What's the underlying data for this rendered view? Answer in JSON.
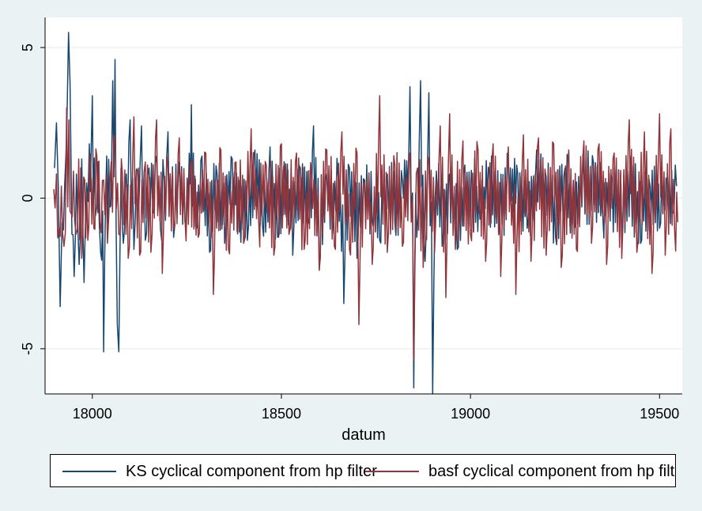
{
  "chart_data": {
    "type": "line",
    "xlabel": "datum",
    "ylabel": "",
    "xlim": [
      17875,
      19560
    ],
    "ylim": [
      -6.5,
      6
    ],
    "xticks": [
      18000,
      18500,
      19000,
      19500
    ],
    "yticks": [
      -5,
      0,
      5
    ],
    "grid": true,
    "legend_position": "bottom",
    "series": [
      {
        "name": "KS cyclical component from hp filter",
        "color": "#1a476f",
        "anchors": [
          [
            17900,
            1.0
          ],
          [
            17905,
            2.5
          ],
          [
            17910,
            0.4
          ],
          [
            17915,
            -3.6
          ],
          [
            17920,
            -0.8
          ],
          [
            17927,
            0.5
          ],
          [
            17932,
            2.0
          ],
          [
            17937,
            5.5
          ],
          [
            17941,
            3.8
          ],
          [
            17946,
            -1.2
          ],
          [
            17952,
            -2.6
          ],
          [
            17958,
            0.8
          ],
          [
            17965,
            -2.2
          ],
          [
            17972,
            1.3
          ],
          [
            17978,
            -2.8
          ],
          [
            17985,
            0.5
          ],
          [
            17992,
            1.8
          ],
          [
            18000,
            3.4
          ],
          [
            18008,
            -0.6
          ],
          [
            18015,
            1.2
          ],
          [
            18022,
            -1.8
          ],
          [
            18030,
            -5.1
          ],
          [
            18038,
            1.4
          ],
          [
            18046,
            -0.3
          ],
          [
            18054,
            3.9
          ],
          [
            18060,
            4.6
          ],
          [
            18066,
            -4.2
          ],
          [
            18070,
            -5.1
          ],
          [
            18076,
            1.0
          ],
          [
            18082,
            -1.5
          ],
          [
            18090,
            0.8
          ],
          [
            18100,
            2.6
          ],
          [
            18110,
            -1.7
          ],
          [
            18120,
            0.9
          ],
          [
            18130,
            2.4
          ],
          [
            18140,
            -1.4
          ],
          [
            18150,
            1.0
          ],
          [
            18160,
            -0.5
          ],
          [
            18170,
            1.4
          ],
          [
            18180,
            -1.0
          ],
          [
            18190,
            0.6
          ],
          [
            18200,
            2.2
          ],
          [
            18215,
            -1.3
          ],
          [
            18230,
            1.2
          ],
          [
            18245,
            -0.8
          ],
          [
            18262,
            3.1
          ],
          [
            18275,
            -1.0
          ],
          [
            18290,
            1.4
          ],
          [
            18310,
            -1.8
          ],
          [
            18330,
            0.8
          ],
          [
            18350,
            -1.5
          ],
          [
            18370,
            1.3
          ],
          [
            18390,
            -0.5
          ],
          [
            18410,
            -1.4
          ],
          [
            18430,
            1.6
          ],
          [
            18450,
            -0.9
          ],
          [
            18470,
            1.7
          ],
          [
            18490,
            -1.3
          ],
          [
            18510,
            0.6
          ],
          [
            18530,
            -1.9
          ],
          [
            18550,
            1.0
          ],
          [
            18570,
            -0.7
          ],
          [
            18585,
            2.4
          ],
          [
            18600,
            -2.3
          ],
          [
            18620,
            0.8
          ],
          [
            18635,
            -1.2
          ],
          [
            18650,
            0.7
          ],
          [
            18665,
            -3.5
          ],
          [
            18680,
            1.0
          ],
          [
            18700,
            -2.0
          ],
          [
            18720,
            0.6
          ],
          [
            18740,
            -0.7
          ],
          [
            18760,
            -1.4
          ],
          [
            18780,
            0.8
          ],
          [
            18800,
            -0.8
          ],
          [
            18820,
            0.6
          ],
          [
            18840,
            3.7
          ],
          [
            18850,
            -6.3
          ],
          [
            18858,
            -1.3
          ],
          [
            18868,
            3.9
          ],
          [
            18880,
            -2.1
          ],
          [
            18890,
            3.5
          ],
          [
            18900,
            -6.5
          ],
          [
            18910,
            0.9
          ],
          [
            18925,
            -1.6
          ],
          [
            18945,
            0.8
          ],
          [
            18965,
            -1.7
          ],
          [
            18985,
            1.1
          ],
          [
            19005,
            0.5
          ],
          [
            19025,
            -0.7
          ],
          [
            19050,
            0.9
          ],
          [
            19075,
            -1.2
          ],
          [
            19100,
            1.0
          ],
          [
            19125,
            0.8
          ],
          [
            19150,
            -1.0
          ],
          [
            19175,
            1.6
          ],
          [
            19200,
            0.7
          ],
          [
            19225,
            -1.3
          ],
          [
            19250,
            1.0
          ],
          [
            19275,
            -0.8
          ],
          [
            19300,
            0.8
          ],
          [
            19325,
            1.2
          ],
          [
            19350,
            -0.6
          ],
          [
            19375,
            0.5
          ],
          [
            19400,
            -1.1
          ],
          [
            19425,
            0.6
          ],
          [
            19450,
            -1.5
          ],
          [
            19475,
            0.4
          ],
          [
            19500,
            -1.0
          ],
          [
            19520,
            0.5
          ],
          [
            19535,
            -0.5
          ],
          [
            19545,
            0.4
          ]
        ]
      },
      {
        "name": "basf cyclical component from hp filter",
        "color": "#90353b",
        "anchors": [
          [
            17898,
            0.3
          ],
          [
            17905,
            0.8
          ],
          [
            17912,
            -1.0
          ],
          [
            17918,
            0.4
          ],
          [
            17925,
            -1.6
          ],
          [
            17932,
            3.0
          ],
          [
            17938,
            2.6
          ],
          [
            17944,
            -0.5
          ],
          [
            17950,
            0.9
          ],
          [
            17957,
            -1.2
          ],
          [
            17964,
            1.3
          ],
          [
            17972,
            -2.0
          ],
          [
            17980,
            0.6
          ],
          [
            17988,
            -1.4
          ],
          [
            17996,
            1.1
          ],
          [
            18004,
            -1.0
          ],
          [
            18012,
            1.4
          ],
          [
            18020,
            -0.8
          ],
          [
            18030,
            0.6
          ],
          [
            18040,
            -1.5
          ],
          [
            18050,
            1.2
          ],
          [
            18060,
            2.0
          ],
          [
            18070,
            -1.2
          ],
          [
            18080,
            0.7
          ],
          [
            18095,
            -2.0
          ],
          [
            18110,
            2.7
          ],
          [
            18125,
            -1.9
          ],
          [
            18140,
            1.2
          ],
          [
            18155,
            -1.8
          ],
          [
            18170,
            2.6
          ],
          [
            18185,
            -2.5
          ],
          [
            18200,
            1.0
          ],
          [
            18215,
            -1.0
          ],
          [
            18230,
            2.0
          ],
          [
            18245,
            -0.7
          ],
          [
            18260,
            1.2
          ],
          [
            18280,
            -1.3
          ],
          [
            18300,
            1.5
          ],
          [
            18320,
            -3.2
          ],
          [
            18340,
            1.6
          ],
          [
            18360,
            -1.7
          ],
          [
            18380,
            1.2
          ],
          [
            18400,
            -1.5
          ],
          [
            18420,
            2.3
          ],
          [
            18440,
            -0.8
          ],
          [
            18460,
            1.1
          ],
          [
            18480,
            -1.9
          ],
          [
            18500,
            1.8
          ],
          [
            18520,
            -1.2
          ],
          [
            18540,
            1.5
          ],
          [
            18560,
            -1.7
          ],
          [
            18580,
            0.8
          ],
          [
            18600,
            -2.4
          ],
          [
            18620,
            1.6
          ],
          [
            18640,
            -1.6
          ],
          [
            18660,
            2.2
          ],
          [
            18680,
            -1.7
          ],
          [
            18700,
            1.5
          ],
          [
            18705,
            -4.2
          ],
          [
            18720,
            0.5
          ],
          [
            18740,
            -2.2
          ],
          [
            18760,
            3.4
          ],
          [
            18780,
            -1.8
          ],
          [
            18800,
            1.1
          ],
          [
            18820,
            -1.6
          ],
          [
            18840,
            1.5
          ],
          [
            18850,
            -5.4
          ],
          [
            18860,
            1.0
          ],
          [
            18875,
            -2.3
          ],
          [
            18890,
            1.2
          ],
          [
            18905,
            -1.8
          ],
          [
            18920,
            2.4
          ],
          [
            18935,
            -3.3
          ],
          [
            18945,
            2.8
          ],
          [
            18960,
            -1.7
          ],
          [
            18980,
            1.9
          ],
          [
            19000,
            -1.2
          ],
          [
            19020,
            1.6
          ],
          [
            19040,
            -2.1
          ],
          [
            19060,
            1.8
          ],
          [
            19080,
            -2.6
          ],
          [
            19100,
            1.7
          ],
          [
            19120,
            -3.2
          ],
          [
            19140,
            2.1
          ],
          [
            19160,
            -2.1
          ],
          [
            19180,
            2.0
          ],
          [
            19200,
            -1.9
          ],
          [
            19220,
            1.8
          ],
          [
            19240,
            -2.3
          ],
          [
            19260,
            1.6
          ],
          [
            19280,
            -1.7
          ],
          [
            19300,
            1.9
          ],
          [
            19320,
            -1.5
          ],
          [
            19340,
            1.8
          ],
          [
            19360,
            -2.2
          ],
          [
            19380,
            1.5
          ],
          [
            19400,
            -2.0
          ],
          [
            19420,
            2.6
          ],
          [
            19440,
            -1.8
          ],
          [
            19460,
            2.2
          ],
          [
            19480,
            -2.5
          ],
          [
            19500,
            2.8
          ],
          [
            19515,
            -1.9
          ],
          [
            19530,
            2.3
          ],
          [
            19540,
            -1.1
          ],
          [
            19548,
            -0.8
          ]
        ]
      }
    ]
  }
}
